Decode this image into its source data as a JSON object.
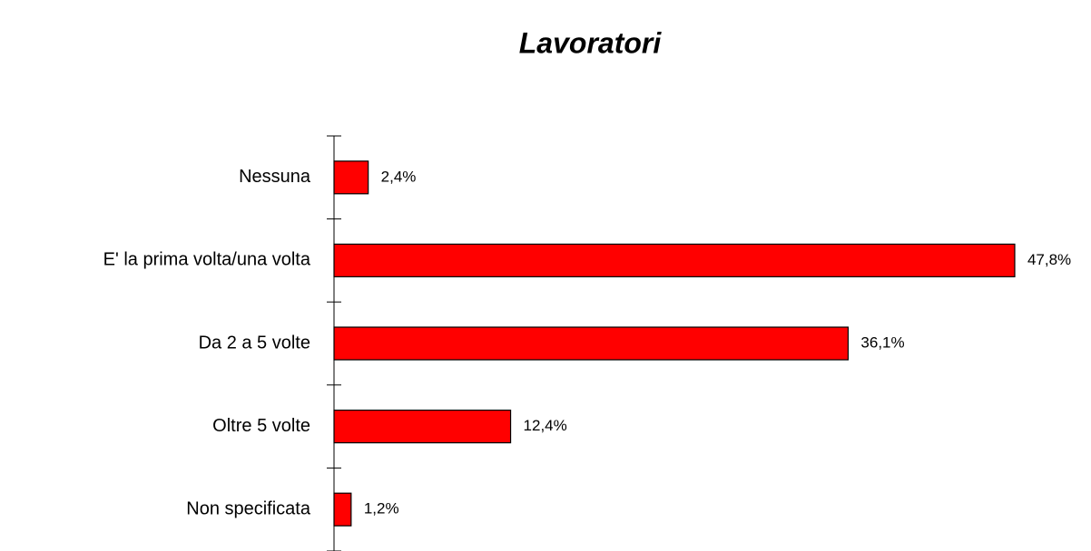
{
  "chart_data": {
    "type": "bar",
    "orientation": "horizontal",
    "title": "Lavoratori",
    "categories": [
      "Nessuna",
      "E' la prima volta/una volta",
      "Da 2 a 5 volte",
      "Oltre 5 volte",
      "Non specificata"
    ],
    "values": [
      2.4,
      47.8,
      36.1,
      12.4,
      1.2
    ],
    "value_labels": [
      "2,4%",
      "47,8%",
      "36,1%",
      "12,4%",
      "1,2%"
    ],
    "color": "#ff0000"
  }
}
